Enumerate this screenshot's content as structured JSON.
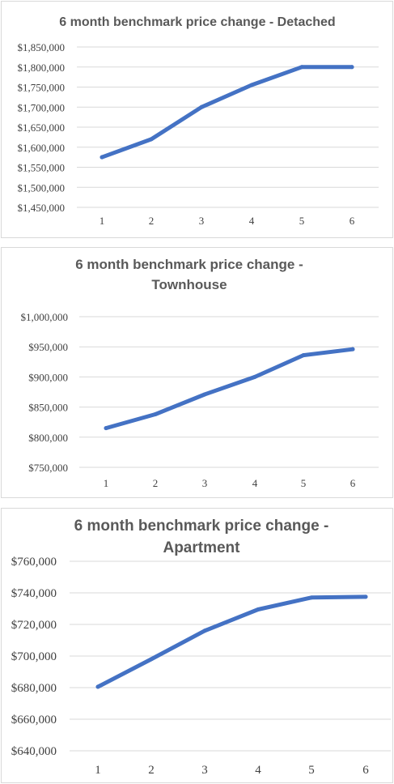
{
  "chart_data": [
    {
      "type": "line",
      "title": "6 month benchmark price change - Detached",
      "categories": [
        "1",
        "2",
        "3",
        "4",
        "5",
        "6"
      ],
      "values": [
        1575000,
        1620000,
        1700000,
        1755000,
        1800000,
        1800000
      ],
      "ylim": [
        1450000,
        1850000
      ],
      "yticks": [
        "$1,450,000",
        "$1,500,000",
        "$1,550,000",
        "$1,600,000",
        "$1,650,000",
        "$1,700,000",
        "$1,750,000",
        "$1,800,000",
        "$1,850,000"
      ],
      "grid": true,
      "legend": "none",
      "line_color": "#4472c4"
    },
    {
      "type": "line",
      "title": "6 month benchmark price change - Townhouse",
      "title_lines": [
        "6 month benchmark price change -",
        "Townhouse"
      ],
      "categories": [
        "1",
        "2",
        "3",
        "4",
        "5",
        "6"
      ],
      "values": [
        815000,
        838000,
        871000,
        900000,
        936000,
        946000
      ],
      "ylim": [
        750000,
        1000000
      ],
      "yticks": [
        "$750,000",
        "$800,000",
        "$850,000",
        "$900,000",
        "$950,000",
        "$1,000,000"
      ],
      "grid": true,
      "legend": "none",
      "line_color": "#4472c4"
    },
    {
      "type": "line",
      "title": "6 month benchmark price change - Apartment",
      "title_lines": [
        "6 month benchmark price change -",
        "Apartment"
      ],
      "categories": [
        "1",
        "2",
        "3",
        "4",
        "5",
        "6"
      ],
      "values": [
        680500,
        698000,
        716000,
        729500,
        737000,
        737500
      ],
      "ylim": [
        640000,
        760000
      ],
      "yticks": [
        "$640,000",
        "$660,000",
        "$680,000",
        "$700,000",
        "$720,000",
        "$740,000",
        "$760,000"
      ],
      "grid": true,
      "legend": "none",
      "line_color": "#4472c4"
    }
  ]
}
